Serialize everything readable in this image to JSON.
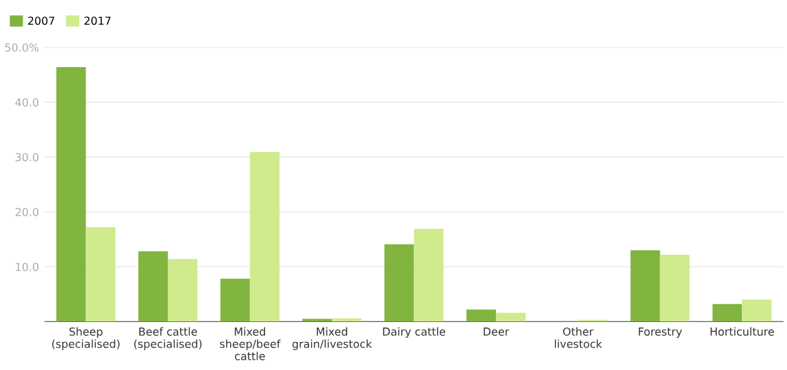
{
  "chart_data": {
    "type": "bar",
    "categories": [
      "Sheep\n(specialised)",
      "Beef cattle\n(specialised)",
      "Mixed\nsheep/beef\ncattle",
      "Mixed\ngrain/livestock",
      "Dairy cattle",
      "Deer",
      "Other\nlivestock",
      "Forestry",
      "Horticulture"
    ],
    "series": [
      {
        "name": "2007",
        "color": "#82b440",
        "values": [
          46.4,
          12.8,
          7.8,
          0.5,
          14.1,
          2.2,
          0,
          13.0,
          3.2
        ]
      },
      {
        "name": "2017",
        "color": "#cfeb8c",
        "values": [
          17.2,
          11.4,
          30.9,
          0.6,
          16.9,
          1.6,
          0.3,
          12.2,
          4.0
        ]
      }
    ],
    "ylim": [
      0,
      50
    ],
    "yticks": [
      {
        "value": 10,
        "label": "10.0"
      },
      {
        "value": 20,
        "label": "20.0"
      },
      {
        "value": 30,
        "label": "30.0"
      },
      {
        "value": 40,
        "label": "40.0"
      },
      {
        "value": 50,
        "label": "50.0%"
      }
    ],
    "grid": "y",
    "legend": "top left"
  }
}
